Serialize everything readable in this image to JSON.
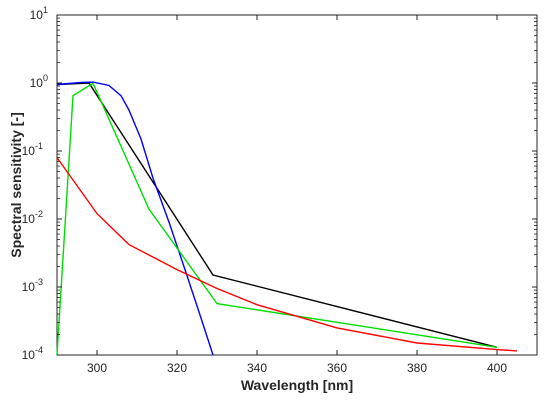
{
  "chart_data": {
    "type": "line",
    "title": "",
    "xlabel": "Wavelength [nm]",
    "ylabel": "Spectral sensitivity [-]",
    "xlim": [
      290,
      410
    ],
    "ylim": [
      0.0001,
      10
    ],
    "yscale": "log",
    "grid": false,
    "x_ticks": [
      300,
      320,
      340,
      360,
      380,
      400
    ],
    "y_ticks": [
      {
        "value": 0.0001,
        "base": "10",
        "exp": "-4"
      },
      {
        "value": 0.001,
        "base": "10",
        "exp": "-3"
      },
      {
        "value": 0.01,
        "base": "10",
        "exp": "-2"
      },
      {
        "value": 0.1,
        "base": "10",
        "exp": "-1"
      },
      {
        "value": 1,
        "base": "10",
        "exp": "0"
      },
      {
        "value": 10,
        "base": "10",
        "exp": "1"
      }
    ],
    "series": [
      {
        "color": "#000000",
        "points": [
          [
            290,
            0.95
          ],
          [
            298,
            1.0
          ],
          [
            329,
            0.0015
          ],
          [
            400,
            0.00013
          ]
        ]
      },
      {
        "color": "#0000ff",
        "points": [
          [
            290,
            0.95
          ],
          [
            296,
            1.02
          ],
          [
            299,
            1.03
          ],
          [
            303,
            0.92
          ],
          [
            306,
            0.65
          ],
          [
            308,
            0.4
          ],
          [
            311,
            0.15
          ],
          [
            314,
            0.04
          ],
          [
            318,
            0.009
          ],
          [
            322,
            0.0018
          ],
          [
            326,
            0.00035
          ],
          [
            329,
            0.0001
          ]
        ]
      },
      {
        "color": "#00dd00",
        "points": [
          [
            290,
            0.0001
          ],
          [
            294,
            0.65
          ],
          [
            299,
            0.99
          ],
          [
            313,
            0.014
          ],
          [
            330,
            0.00057
          ],
          [
            400,
            0.00013
          ]
        ]
      },
      {
        "color": "#ff0000",
        "points": [
          [
            290,
            0.08
          ],
          [
            300,
            0.012
          ],
          [
            308,
            0.0042
          ],
          [
            320,
            0.0018
          ],
          [
            330,
            0.00095
          ],
          [
            340,
            0.00055
          ],
          [
            360,
            0.00025
          ],
          [
            380,
            0.00015
          ],
          [
            400,
            0.00012
          ],
          [
            405,
            0.000115
          ]
        ]
      }
    ]
  }
}
